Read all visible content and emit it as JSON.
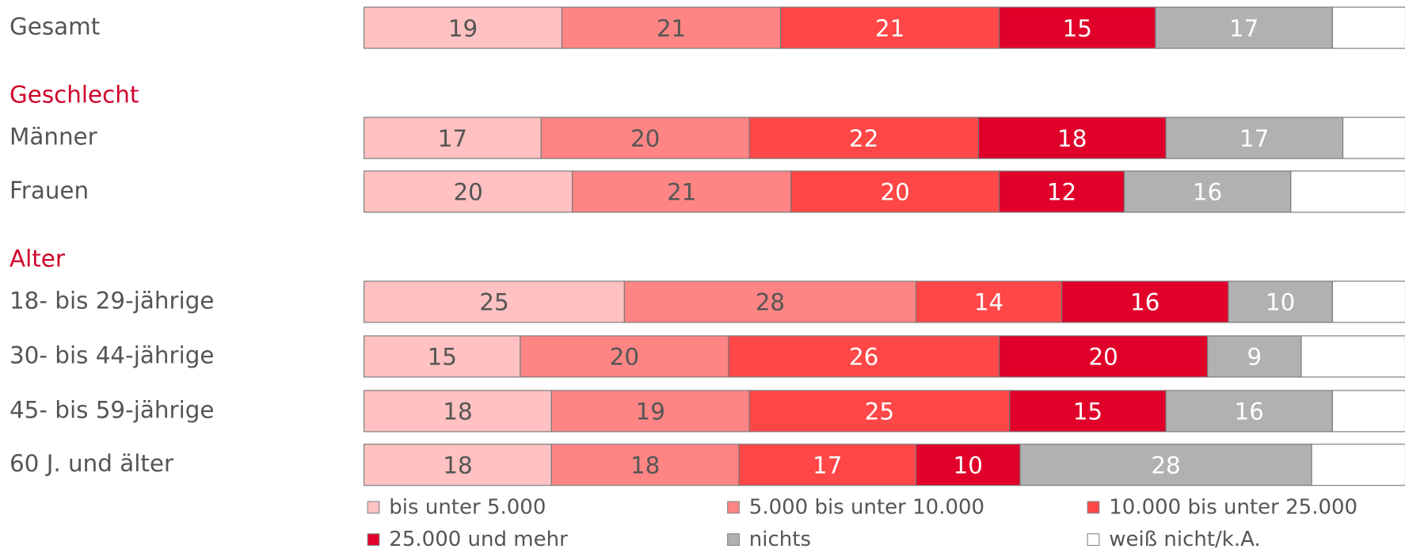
{
  "chart_data": {
    "type": "stacked-bar-horizontal",
    "categories": [
      "Gesamt",
      "Männer",
      "Frauen",
      "18- bis 29-jährige",
      "30- bis 44-jährige",
      "45- bis 59-jährige",
      "60 J. und älter"
    ],
    "group_labels": [
      "Geschlecht",
      "Alter"
    ],
    "xlim": [
      0,
      100
    ],
    "series": [
      {
        "name": "bis unter 5.000",
        "color": "#ffc1c1",
        "values": [
          19,
          17,
          20,
          25,
          15,
          18,
          18
        ]
      },
      {
        "name": "5.000 bis unter 10.000",
        "color": "#ff8585",
        "values": [
          21,
          20,
          21,
          28,
          20,
          19,
          18
        ]
      },
      {
        "name": "10.000 bis unter 25.000",
        "color": "#ff4747",
        "values": [
          21,
          22,
          20,
          14,
          26,
          25,
          17
        ]
      },
      {
        "name": "25.000 und mehr",
        "color": "#e0002a",
        "values": [
          15,
          18,
          12,
          16,
          20,
          15,
          10
        ]
      },
      {
        "name": "nichts",
        "color": "#b1b1b1",
        "values": [
          17,
          17,
          16,
          10,
          9,
          16,
          28
        ]
      },
      {
        "name": "weiß nicht/k.A.",
        "color": "#ffffff",
        "values": [
          7,
          6,
          11,
          7,
          10,
          7,
          9
        ],
        "value_labels": [
          null,
          null,
          null,
          null,
          null,
          null,
          null
        ]
      }
    ]
  }
}
